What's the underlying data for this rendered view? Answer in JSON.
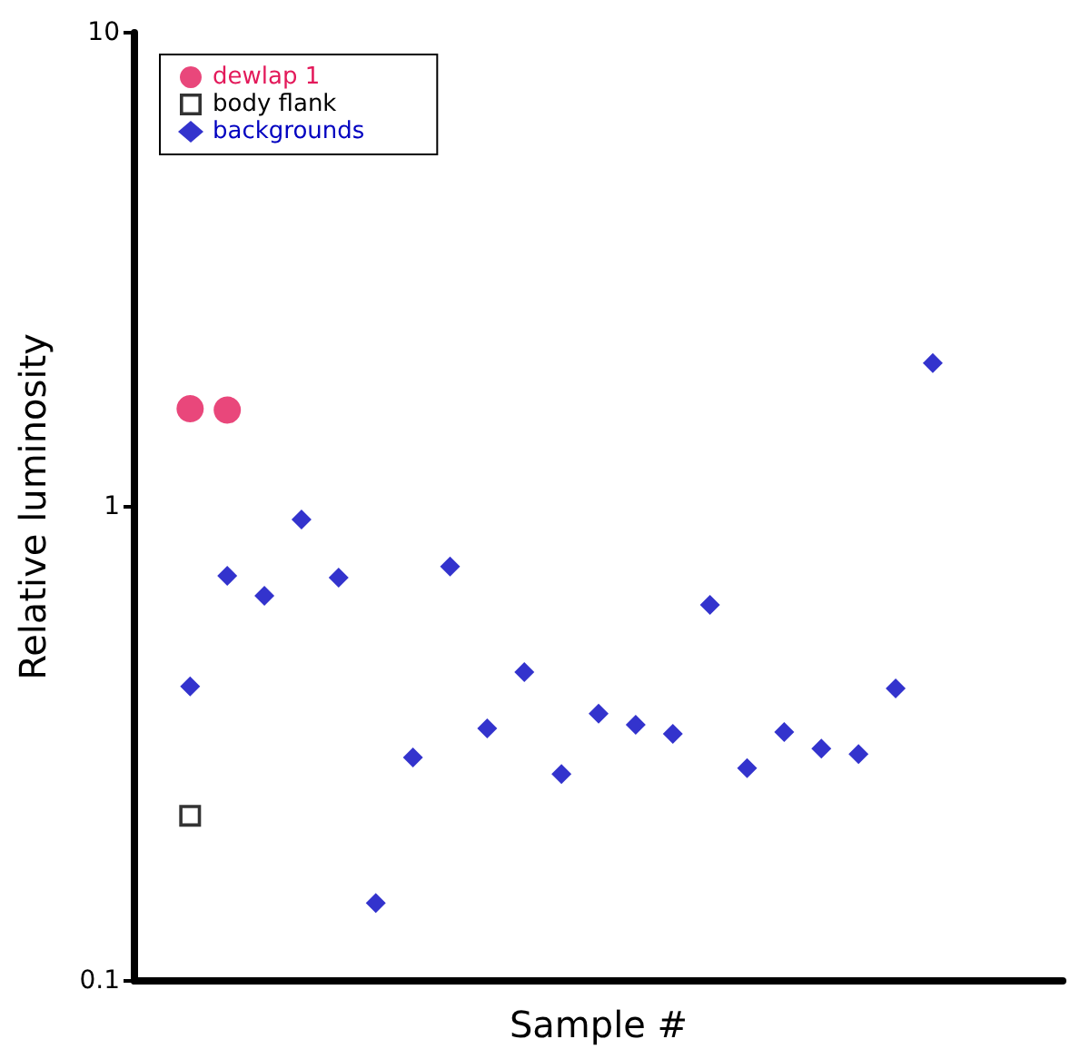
{
  "chart_data": {
    "type": "scatter",
    "xlabel": "Sample #",
    "ylabel": "Relative luminosity",
    "log": "y",
    "ylim": [
      0.1,
      10
    ],
    "yticks": [
      0.1,
      1,
      10
    ],
    "grid": false,
    "legend": "top left",
    "tick_labels": "y",
    "categories": [
      null,
      null,
      null,
      null,
      null,
      null,
      null,
      null,
      null,
      null,
      null,
      null,
      null,
      null,
      null,
      null,
      null,
      null,
      null,
      null,
      null,
      null,
      null,
      null,
      null
    ],
    "series": [
      {
        "name": "dewlap 1",
        "color": "#e3195a",
        "marker": "circle",
        "values": [
          null,
          1.61,
          1.6,
          null,
          null,
          null,
          null,
          null,
          null,
          null,
          null,
          null,
          null,
          null,
          null,
          null,
          null,
          null,
          null,
          null,
          null,
          null,
          null,
          null,
          null
        ]
      },
      {
        "name": "body flank",
        "color": "#000000",
        "marker": "square",
        "values": [
          null,
          0.223,
          null,
          null,
          null,
          null,
          null,
          null,
          null,
          null,
          null,
          null,
          null,
          null,
          null,
          null,
          null,
          null,
          null,
          null,
          null,
          null,
          null,
          null,
          null
        ]
      },
      {
        "name": "backgrounds",
        "color": "#0000c0",
        "marker": "diamond",
        "values": [
          null,
          0.418,
          0.715,
          0.649,
          0.94,
          0.709,
          0.146,
          0.296,
          0.748,
          0.341,
          0.448,
          0.273,
          0.366,
          0.347,
          0.332,
          0.621,
          0.281,
          0.335,
          0.309,
          0.301,
          0.414,
          2.01,
          null,
          null,
          null
        ]
      }
    ]
  }
}
